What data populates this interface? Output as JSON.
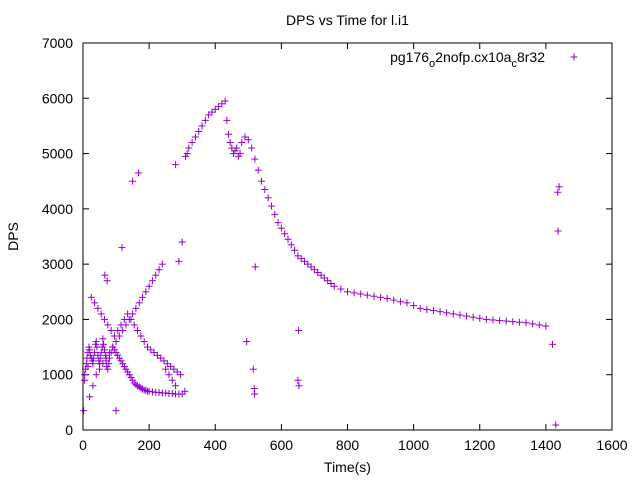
{
  "chart_data": {
    "type": "scatter",
    "title": "DPS vs Time for l.i1",
    "xlabel": "Time(s)",
    "ylabel": "DPS",
    "xlim": [
      0,
      1600
    ],
    "ylim": [
      0,
      7000
    ],
    "x_ticks": [
      0,
      200,
      400,
      600,
      800,
      1000,
      1200,
      1400,
      1600
    ],
    "y_ticks": [
      0,
      1000,
      2000,
      3000,
      4000,
      5000,
      6000,
      7000
    ],
    "x_tick_labels": [
      "0",
      "200",
      "400",
      "600",
      "800",
      "1000",
      "1200",
      "1400",
      "1600"
    ],
    "y_tick_labels": [
      "0",
      "1000",
      "2000",
      "3000",
      "4000",
      "5000",
      "6000",
      "7000"
    ],
    "grid": false,
    "legend_position": "top-right",
    "series": [
      {
        "name": "pg176_o2nofp.cx10a_c8r32",
        "name_parts": {
          "base": "pg176",
          "sub1": "o",
          "mid": "2nofp.cx10a",
          "sub2": "c",
          "tail": "8r32"
        },
        "color": "#9400d3",
        "marker": "plus",
        "x": [
          2,
          5,
          8,
          10,
          12,
          15,
          18,
          20,
          22,
          25,
          28,
          30,
          32,
          35,
          38,
          40,
          42,
          45,
          48,
          50,
          52,
          55,
          58,
          60,
          62,
          65,
          68,
          70,
          72,
          75,
          78,
          80,
          85,
          90,
          95,
          100,
          105,
          110,
          115,
          120,
          125,
          130,
          135,
          140,
          145,
          150,
          155,
          160,
          165,
          170,
          175,
          180,
          185,
          190,
          195,
          200,
          210,
          220,
          230,
          240,
          250,
          260,
          270,
          280,
          290,
          300,
          5,
          15,
          25,
          35,
          45,
          55,
          65,
          75,
          85,
          95,
          105,
          115,
          125,
          135,
          145,
          155,
          165,
          175,
          185,
          195,
          205,
          215,
          225,
          235,
          245,
          255,
          265,
          275,
          285,
          295,
          20,
          30,
          40,
          50,
          60,
          70,
          80,
          90,
          100,
          110,
          120,
          130,
          140,
          150,
          160,
          170,
          180,
          190,
          200,
          210,
          220,
          230,
          240,
          250,
          260,
          270,
          280,
          290,
          300,
          66,
          73,
          100,
          118,
          150,
          168,
          280,
          310,
          315,
          320,
          330,
          340,
          350,
          360,
          370,
          380,
          390,
          400,
          410,
          420,
          430,
          435,
          440,
          445,
          450,
          455,
          460,
          465,
          470,
          475,
          480,
          490,
          500,
          510,
          520,
          530,
          540,
          550,
          560,
          570,
          580,
          590,
          600,
          610,
          620,
          630,
          640,
          650,
          660,
          670,
          680,
          690,
          700,
          710,
          720,
          730,
          740,
          750,
          760,
          780,
          800,
          820,
          840,
          860,
          880,
          900,
          920,
          940,
          960,
          980,
          1000,
          1020,
          1040,
          1060,
          1080,
          1100,
          1120,
          1140,
          1160,
          1180,
          1200,
          1220,
          1240,
          1260,
          1280,
          1300,
          1320,
          1340,
          1360,
          1380,
          1400,
          1420,
          1430,
          1436,
          1440,
          1437,
          495,
          515,
          518,
          519,
          521,
          652,
          650,
          653,
          308
        ],
        "y": [
          350,
          900,
          1100,
          1200,
          1300,
          1400,
          1500,
          1450,
          1350,
          1300,
          1250,
          1200,
          1300,
          1400,
          1550,
          1600,
          1500,
          1350,
          1250,
          1200,
          1300,
          1400,
          1500,
          1650,
          1550,
          1450,
          1350,
          1250,
          1150,
          1100,
          1200,
          1300,
          1400,
          1500,
          1450,
          1400,
          1350,
          1300,
          1250,
          1200,
          1150,
          1100,
          1050,
          1000,
          950,
          900,
          850,
          820,
          800,
          780,
          760,
          740,
          720,
          720,
          700,
          700,
          690,
          680,
          680,
          670,
          670,
          660,
          660,
          650,
          650,
          650,
          1000,
          1150,
          2400,
          2300,
          2200,
          2100,
          2000,
          1900,
          1800,
          1700,
          1800,
          1900,
          2000,
          2100,
          2000,
          1900,
          1800,
          1700,
          1600,
          1500,
          1450,
          1400,
          1350,
          1300,
          1250,
          1200,
          1150,
          1100,
          1050,
          1000,
          600,
          800,
          1000,
          1100,
          1200,
          1300,
          1400,
          1500,
          1600,
          1700,
          1800,
          1900,
          2000,
          2100,
          2200,
          2300,
          2400,
          2500,
          2600,
          2700,
          2800,
          2900,
          3000,
          1100,
          1000,
          900,
          800,
          3050,
          3400,
          2800,
          2700,
          350,
          3300,
          4500,
          4650,
          4800,
          4950,
          5000,
          5100,
          5200,
          5300,
          5400,
          5500,
          5600,
          5700,
          5750,
          5800,
          5850,
          5900,
          5950,
          5600,
          5350,
          5200,
          5100,
          5000,
          5050,
          5100,
          4950,
          5000,
          5200,
          5300,
          5250,
          5100,
          4900,
          4700,
          4500,
          4350,
          4200,
          4050,
          3900,
          3750,
          3650,
          3550,
          3450,
          3350,
          3250,
          3150,
          3100,
          3050,
          3000,
          2950,
          2900,
          2850,
          2800,
          2750,
          2700,
          2650,
          2600,
          2550,
          2500,
          2480,
          2460,
          2440,
          2420,
          2400,
          2380,
          2350,
          2320,
          2300,
          2250,
          2200,
          2180,
          2160,
          2140,
          2120,
          2100,
          2080,
          2060,
          2040,
          2020,
          2000,
          1990,
          1980,
          1970,
          1960,
          1950,
          1940,
          1920,
          1900,
          1880,
          1550,
          90,
          4300,
          4400,
          3600,
          1600,
          1100,
          750,
          650,
          2950,
          1800,
          900,
          800,
          700
        ]
      }
    ]
  }
}
